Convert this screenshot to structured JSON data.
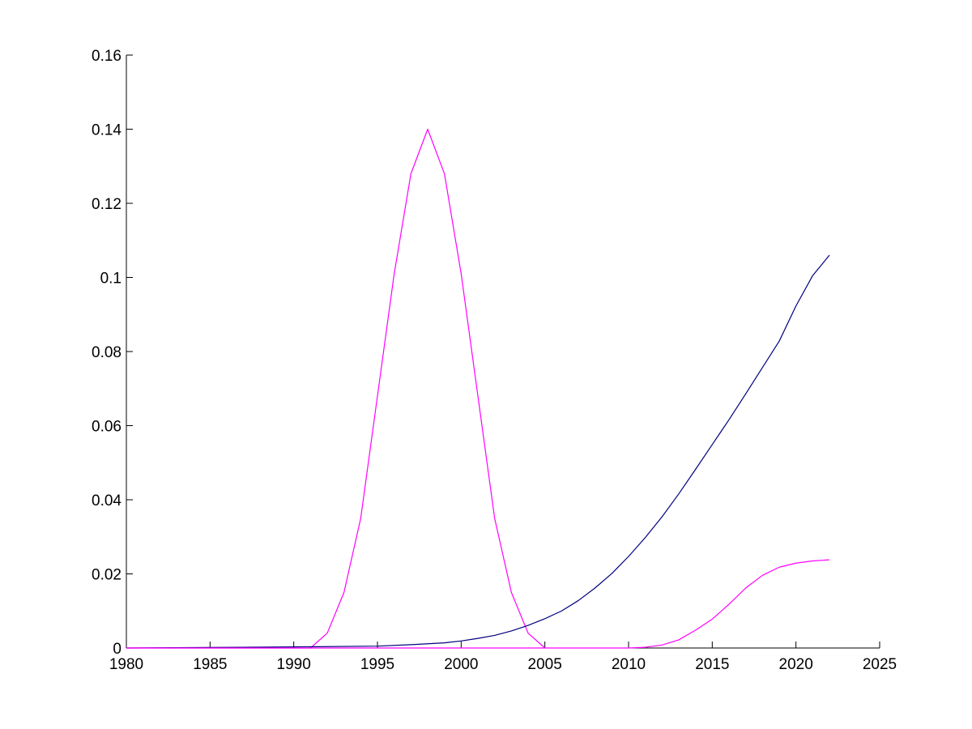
{
  "chart_data": {
    "type": "line",
    "title": "",
    "xlabel": "",
    "ylabel": "",
    "xlim": [
      1980,
      2025
    ],
    "ylim": [
      0,
      0.16
    ],
    "grid": false,
    "x_ticks": [
      1980,
      1985,
      1990,
      1995,
      2000,
      2005,
      2010,
      2015,
      2020,
      2025
    ],
    "y_ticks": [
      0,
      0.02,
      0.04,
      0.06,
      0.08,
      0.1,
      0.12,
      0.14,
      0.16
    ],
    "x_tick_labels": [
      "1980",
      "1985",
      "1990",
      "1995",
      "2000",
      "2005",
      "2010",
      "2015",
      "2020",
      "2025"
    ],
    "y_tick_labels": [
      "0",
      "0.02",
      "0.04",
      "0.06",
      "0.08",
      "0.1",
      "0.12",
      "0.14",
      "0.16"
    ],
    "series": [
      {
        "color": "#ff00ff",
        "x": [
          1980,
          1985,
          1990,
          1991,
          1992,
          1993,
          1994,
          1995,
          1996,
          1997,
          1998,
          1999,
          2000,
          2001,
          2002,
          2003,
          2004,
          2005
        ],
        "y": [
          0,
          0,
          0,
          0,
          0.004,
          0.015,
          0.035,
          0.068,
          0.101,
          0.128,
          0.14,
          0.128,
          0.101,
          0.068,
          0.035,
          0.015,
          0.004,
          0
        ]
      },
      {
        "color": "#00007f",
        "x": [
          1980,
          1987,
          1990,
          1995,
          1997,
          1999,
          2000,
          2001,
          2002,
          2003,
          2004,
          2005,
          2006,
          2007,
          2008,
          2009,
          2010,
          2011,
          2012,
          2013,
          2014,
          2015,
          2016,
          2017,
          2018,
          2019,
          2020,
          2021,
          2022
        ],
        "y": [
          0,
          0.0002,
          0.0003,
          0.0005,
          0.0009,
          0.0014,
          0.0019,
          0.0026,
          0.0034,
          0.0046,
          0.0061,
          0.0079,
          0.01,
          0.0128,
          0.0162,
          0.0201,
          0.0247,
          0.0298,
          0.0354,
          0.0416,
          0.0482,
          0.0549,
          0.0616,
          0.0686,
          0.0757,
          0.0828,
          0.0923,
          0.1005,
          0.106
        ]
      },
      {
        "color": "#ff00ff",
        "x": [
          1980,
          2005,
          2010,
          2011,
          2012,
          2013,
          2014,
          2015,
          2016,
          2017,
          2018,
          2019,
          2020,
          2021,
          2022
        ],
        "y": [
          0,
          0,
          0,
          0.0002,
          0.0008,
          0.0022,
          0.0048,
          0.0078,
          0.0118,
          0.0162,
          0.0196,
          0.0218,
          0.0229,
          0.0235,
          0.0238
        ]
      }
    ]
  }
}
